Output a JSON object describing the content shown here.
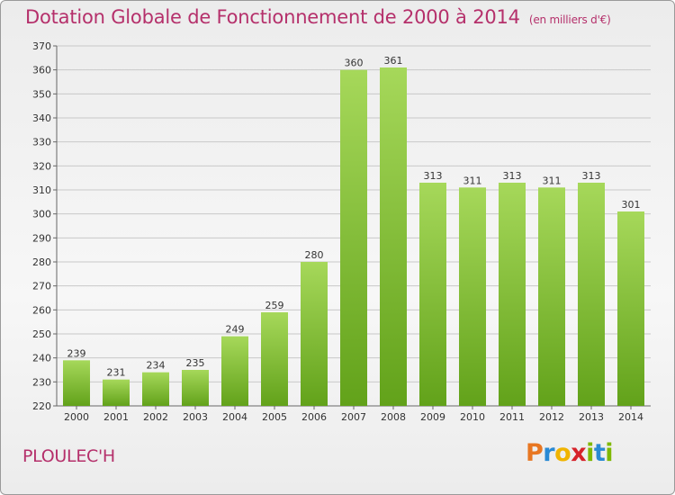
{
  "header": {
    "title": "Dotation Globale de Fonctionnement de 2000 à 2014",
    "subtitle": "(en milliers d'€)"
  },
  "footer": {
    "commune": "PLOULEC'H",
    "logo_text": "Proxiti"
  },
  "colors": {
    "title": "#b5306b",
    "bar_light": "#a6d85a",
    "bar_dark": "#62a21a",
    "grid": "#c8c8c8"
  },
  "chart_data": {
    "type": "bar",
    "title": "Dotation Globale de Fonctionnement de 2000 à 2014",
    "subtitle": "(en milliers d'€)",
    "categories": [
      "2000",
      "2001",
      "2002",
      "2003",
      "2004",
      "2005",
      "2006",
      "2007",
      "2008",
      "2009",
      "2010",
      "2011",
      "2012",
      "2013",
      "2014"
    ],
    "values": [
      239,
      231,
      234,
      235,
      249,
      259,
      280,
      360,
      361,
      313,
      311,
      313,
      311,
      313,
      301
    ],
    "xlabel": "",
    "ylabel": "",
    "ylim": [
      220,
      370
    ],
    "ytick_step": 10,
    "grid": true,
    "data_labels": true
  }
}
